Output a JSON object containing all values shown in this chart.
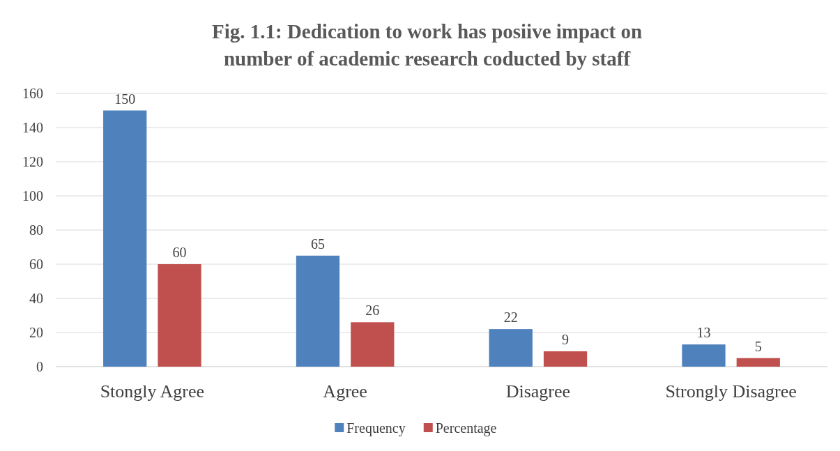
{
  "chart_data": {
    "type": "bar",
    "title": "Fig. 1.1: Dedication to work has posiive impact on number of academic research coducted by staff",
    "categories": [
      "Stongly Agree",
      "Agree",
      "Disagree",
      "Strongly Disagree"
    ],
    "series": [
      {
        "name": "Frequency",
        "color": "#4f81bd",
        "values": [
          150,
          65,
          22,
          13
        ]
      },
      {
        "name": "Percentage",
        "color": "#c0504d",
        "values": [
          60,
          26,
          9,
          5
        ]
      }
    ],
    "ylim": [
      0,
      160
    ],
    "yticks": [
      0,
      20,
      40,
      60,
      80,
      100,
      120,
      140,
      160
    ],
    "grid": "y",
    "legend": "bottom",
    "data_labels": true
  }
}
